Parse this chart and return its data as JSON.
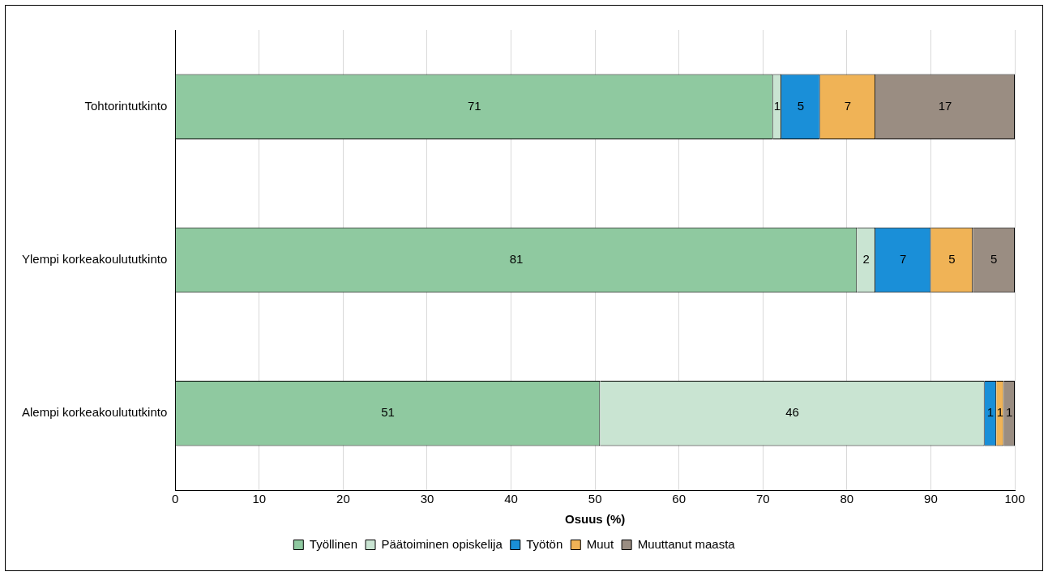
{
  "chart_data": {
    "type": "bar",
    "orientation": "horizontal",
    "stacked": true,
    "xlabel": "Osuus (%)",
    "categories": [
      "Tohtorintutkinto",
      "Ylempi korkeakoulututkinto",
      "Alempi korkeakoulututkinto"
    ],
    "series": [
      {
        "name": "Työllinen",
        "color": "#8fc9a0",
        "values": [
          71.2,
          81.2,
          50.6
        ],
        "value_labels": [
          "71",
          "81",
          "51"
        ]
      },
      {
        "name": "Päätoiminen opiskelija",
        "color": "#c9e4d2",
        "values": [
          1.0,
          2.2,
          45.8
        ],
        "value_labels": [
          "1",
          "2",
          "46"
        ]
      },
      {
        "name": "Työtön",
        "color": "#1a8fd8",
        "values": [
          4.6,
          6.6,
          1.4
        ],
        "value_labels": [
          "5",
          "7",
          "1"
        ]
      },
      {
        "name": "Muut",
        "color": "#f0b356",
        "values": [
          6.6,
          5.0,
          0.9
        ],
        "value_labels": [
          "7",
          "5",
          "1"
        ]
      },
      {
        "name": "Muuttanut maasta",
        "color": "#9a8d82",
        "values": [
          16.6,
          5.0,
          1.3
        ],
        "value_labels": [
          "17",
          "5",
          "1"
        ]
      }
    ],
    "xlim": [
      0,
      100
    ],
    "xticks": [
      0,
      10,
      20,
      30,
      40,
      50,
      60,
      70,
      80,
      90,
      100
    ],
    "grid": "x",
    "legend": "bottom"
  }
}
